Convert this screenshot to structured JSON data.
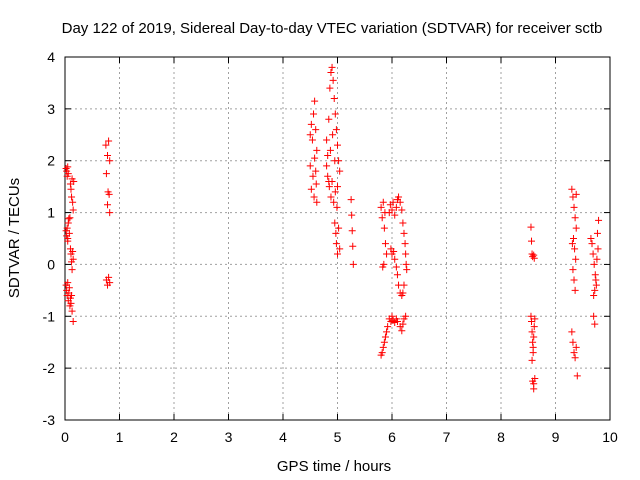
{
  "chart_data": {
    "type": "scatter",
    "title": "Day 122 of 2019, Sidereal Day-to-day VTEC variation (SDTVAR) for receiver sctb",
    "xlabel": "GPS time / hours",
    "ylabel": "SDTVAR / TECUs",
    "xlim": [
      0,
      10
    ],
    "ylim": [
      -3,
      4
    ],
    "xticks": [
      0,
      1,
      2,
      3,
      4,
      5,
      6,
      7,
      8,
      9,
      10
    ],
    "yticks": [
      -3,
      -2,
      -1,
      0,
      1,
      2,
      3,
      4
    ],
    "grid": true,
    "marker": "+",
    "color": "#ff0000",
    "series": [
      {
        "name": "SDTVAR",
        "points": [
          [
            0.02,
            1.85
          ],
          [
            0.03,
            1.8
          ],
          [
            0.04,
            1.7
          ],
          [
            0.05,
            1.88
          ],
          [
            0.06,
            1.75
          ],
          [
            0.02,
            0.65
          ],
          [
            0.03,
            0.55
          ],
          [
            0.04,
            0.7
          ],
          [
            0.05,
            0.5
          ],
          [
            0.06,
            0.8
          ],
          [
            0.07,
            0.88
          ],
          [
            0.08,
            0.6
          ],
          [
            0.09,
            0.9
          ],
          [
            0.05,
            0.45
          ],
          [
            0.02,
            -0.4
          ],
          [
            0.03,
            -0.5
          ],
          [
            0.04,
            -0.6
          ],
          [
            0.05,
            -0.35
          ],
          [
            0.06,
            -0.7
          ],
          [
            0.07,
            -0.55
          ],
          [
            0.08,
            -0.45
          ],
          [
            0.09,
            -0.8
          ],
          [
            0.1,
            -0.65
          ],
          [
            0.11,
            -0.75
          ],
          [
            0.12,
            -0.6
          ],
          [
            0.13,
            -0.9
          ],
          [
            0.15,
            -1.1
          ],
          [
            0.1,
            1.55
          ],
          [
            0.11,
            1.45
          ],
          [
            0.12,
            1.3
          ],
          [
            0.13,
            1.65
          ],
          [
            0.14,
            1.2
          ],
          [
            0.15,
            1.05
          ],
          [
            0.16,
            1.6
          ],
          [
            0.1,
            0.3
          ],
          [
            0.11,
            0.2
          ],
          [
            0.12,
            0.05
          ],
          [
            0.13,
            -0.1
          ],
          [
            0.14,
            0.25
          ],
          [
            0.15,
            0.1
          ],
          [
            0.75,
            2.3
          ],
          [
            0.78,
            2.1
          ],
          [
            0.8,
            2.38
          ],
          [
            0.82,
            2.0
          ],
          [
            0.76,
            1.75
          ],
          [
            0.79,
            1.4
          ],
          [
            0.81,
            1.35
          ],
          [
            0.78,
            1.15
          ],
          [
            0.82,
            1.0
          ],
          [
            0.76,
            -0.3
          ],
          [
            0.78,
            -0.4
          ],
          [
            0.8,
            -0.25
          ],
          [
            0.82,
            -0.35
          ],
          [
            4.5,
            2.5
          ],
          [
            4.52,
            2.7
          ],
          [
            4.54,
            2.4
          ],
          [
            4.56,
            2.9
          ],
          [
            4.58,
            3.15
          ],
          [
            4.6,
            2.6
          ],
          [
            4.62,
            2.2
          ],
          [
            4.5,
            1.9
          ],
          [
            4.55,
            1.7
          ],
          [
            4.6,
            1.8
          ],
          [
            4.52,
            1.45
          ],
          [
            4.57,
            1.3
          ],
          [
            4.62,
            1.2
          ],
          [
            4.58,
            2.05
          ],
          [
            4.61,
            1.55
          ],
          [
            4.8,
            2.4
          ],
          [
            4.82,
            2.1
          ],
          [
            4.84,
            2.8
          ],
          [
            4.86,
            3.4
          ],
          [
            4.88,
            3.7
          ],
          [
            4.9,
            3.8
          ],
          [
            4.92,
            3.55
          ],
          [
            4.94,
            3.2
          ],
          [
            4.96,
            2.9
          ],
          [
            4.98,
            2.6
          ],
          [
            5.0,
            2.3
          ],
          [
            5.02,
            2.0
          ],
          [
            5.04,
            1.8
          ],
          [
            4.82,
            1.7
          ],
          [
            4.85,
            1.5
          ],
          [
            4.88,
            1.3
          ],
          [
            4.9,
            1.6
          ],
          [
            4.93,
            1.2
          ],
          [
            4.96,
            1.4
          ],
          [
            4.99,
            1.1
          ],
          [
            4.8,
            1.9
          ],
          [
            4.84,
            1.6
          ],
          [
            4.87,
            2.2
          ],
          [
            4.91,
            2.5
          ],
          [
            4.95,
            2.0
          ],
          [
            5.0,
            1.5
          ],
          [
            4.95,
            0.8
          ],
          [
            4.97,
            0.6
          ],
          [
            4.98,
            0.4
          ],
          [
            5.0,
            0.2
          ],
          [
            5.02,
            0.7
          ],
          [
            5.04,
            0.3
          ],
          [
            5.25,
            1.25
          ],
          [
            5.26,
            0.95
          ],
          [
            5.27,
            0.65
          ],
          [
            5.28,
            0.35
          ],
          [
            5.29,
            0.0
          ],
          [
            5.8,
            1.1
          ],
          [
            5.82,
            0.9
          ],
          [
            5.84,
            1.2
          ],
          [
            5.86,
            0.7
          ],
          [
            5.88,
            0.4
          ],
          [
            5.9,
            0.2
          ],
          [
            5.85,
            0.0
          ],
          [
            5.83,
            -0.05
          ],
          [
            5.87,
            1.0
          ],
          [
            5.8,
            -1.75
          ],
          [
            5.82,
            -1.7
          ],
          [
            5.84,
            -1.6
          ],
          [
            5.86,
            -1.5
          ],
          [
            5.88,
            -1.4
          ],
          [
            5.9,
            -1.3
          ],
          [
            5.92,
            -1.2
          ],
          [
            5.95,
            1.0
          ],
          [
            5.97,
            1.15
          ],
          [
            6.0,
            1.05
          ],
          [
            6.02,
            1.2
          ],
          [
            6.05,
            0.95
          ],
          [
            6.08,
            1.1
          ],
          [
            6.1,
            1.25
          ],
          [
            6.12,
            1.3
          ],
          [
            6.15,
            1.2
          ],
          [
            6.18,
            1.05
          ],
          [
            5.98,
            0.3
          ],
          [
            6.0,
            0.2
          ],
          [
            6.03,
            0.25
          ],
          [
            6.05,
            0.1
          ],
          [
            6.08,
            -0.05
          ],
          [
            6.1,
            -0.2
          ],
          [
            6.12,
            -0.4
          ],
          [
            6.15,
            -0.55
          ],
          [
            6.18,
            -0.6
          ],
          [
            6.2,
            -0.55
          ],
          [
            6.22,
            -0.4
          ],
          [
            5.95,
            -1.05
          ],
          [
            5.98,
            -1.1
          ],
          [
            6.0,
            -1.0
          ],
          [
            6.02,
            -1.08
          ],
          [
            6.05,
            -1.12
          ],
          [
            6.08,
            -1.05
          ],
          [
            6.1,
            -1.1
          ],
          [
            6.15,
            -1.2
          ],
          [
            6.18,
            -1.28
          ],
          [
            6.2,
            -1.15
          ],
          [
            6.22,
            -1.05
          ],
          [
            6.25,
            -1.0
          ],
          [
            6.2,
            0.8
          ],
          [
            6.22,
            0.6
          ],
          [
            6.24,
            0.4
          ],
          [
            6.25,
            0.2
          ],
          [
            6.26,
            0.0
          ],
          [
            6.27,
            -0.1
          ],
          [
            8.55,
            0.72
          ],
          [
            8.56,
            0.45
          ],
          [
            8.57,
            0.2
          ],
          [
            8.58,
            0.15
          ],
          [
            8.6,
            0.18
          ],
          [
            8.61,
            0.12
          ],
          [
            8.55,
            -1.0
          ],
          [
            8.56,
            -1.1
          ],
          [
            8.57,
            -1.3
          ],
          [
            8.58,
            -1.5
          ],
          [
            8.59,
            -1.7
          ],
          [
            8.6,
            -1.4
          ],
          [
            8.61,
            -1.2
          ],
          [
            8.62,
            -1.05
          ],
          [
            8.57,
            -1.85
          ],
          [
            8.59,
            -1.6
          ],
          [
            8.58,
            -2.25
          ],
          [
            8.6,
            -2.3
          ],
          [
            8.62,
            -2.2
          ],
          [
            8.6,
            -2.4
          ],
          [
            9.3,
            1.45
          ],
          [
            9.32,
            1.3
          ],
          [
            9.34,
            1.1
          ],
          [
            9.36,
            0.9
          ],
          [
            9.38,
            1.35
          ],
          [
            9.33,
            0.5
          ],
          [
            9.35,
            0.3
          ],
          [
            9.37,
            0.1
          ],
          [
            9.32,
            -0.1
          ],
          [
            9.34,
            -0.3
          ],
          [
            9.36,
            -0.5
          ],
          [
            9.38,
            0.7
          ],
          [
            9.31,
            0.4
          ],
          [
            9.3,
            -1.3
          ],
          [
            9.32,
            -1.5
          ],
          [
            9.34,
            -1.7
          ],
          [
            9.36,
            -1.8
          ],
          [
            9.38,
            -1.6
          ],
          [
            9.4,
            -2.15
          ],
          [
            9.65,
            0.5
          ],
          [
            9.67,
            0.4
          ],
          [
            9.69,
            0.2
          ],
          [
            9.71,
            0.0
          ],
          [
            9.73,
            -0.2
          ],
          [
            9.75,
            -0.4
          ],
          [
            9.77,
            0.6
          ],
          [
            9.79,
            0.85
          ],
          [
            9.7,
            -0.6
          ],
          [
            9.72,
            -0.5
          ],
          [
            9.74,
            -0.3
          ],
          [
            9.76,
            0.1
          ],
          [
            9.78,
            0.3
          ],
          [
            9.7,
            -1.0
          ],
          [
            9.72,
            -1.15
          ]
        ]
      }
    ]
  }
}
